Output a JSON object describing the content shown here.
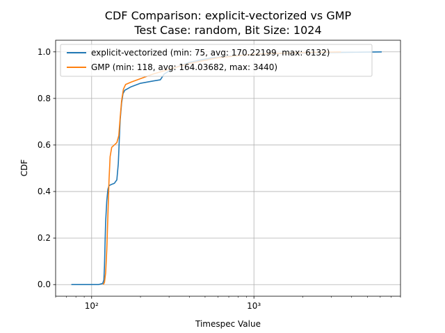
{
  "chart_data": {
    "type": "line",
    "title": "CDF Comparison: explicit-vectorized vs GMP",
    "subtitle": "Test Case: random, Bit Size: 1024",
    "xlabel": "Timespec Value",
    "ylabel": "CDF",
    "x_scale": "log",
    "xlim": [
      60,
      8000
    ],
    "ylim": [
      -0.05,
      1.05
    ],
    "x_major_ticks": [
      100,
      1000
    ],
    "x_tick_labels": [
      "10²",
      "10³"
    ],
    "y_ticks": [
      0.0,
      0.2,
      0.4,
      0.6,
      0.8,
      1.0
    ],
    "y_tick_labels": [
      "0.0",
      "0.2",
      "0.4",
      "0.6",
      "0.8",
      "1.0"
    ],
    "grid": true,
    "legend_position": "top-left",
    "series": [
      {
        "name": "explicit-vectorized (min: 75, avg: 170.22199, max: 6132)",
        "color": "#1f77b4",
        "points": [
          [
            75,
            0.0
          ],
          [
            110,
            0.0
          ],
          [
            117,
            0.005
          ],
          [
            119,
            0.02
          ],
          [
            120,
            0.08
          ],
          [
            121,
            0.18
          ],
          [
            122,
            0.27
          ],
          [
            124,
            0.36
          ],
          [
            126,
            0.41
          ],
          [
            128,
            0.425
          ],
          [
            132,
            0.43
          ],
          [
            138,
            0.435
          ],
          [
            143,
            0.45
          ],
          [
            146,
            0.52
          ],
          [
            148,
            0.62
          ],
          [
            150,
            0.71
          ],
          [
            153,
            0.78
          ],
          [
            156,
            0.82
          ],
          [
            160,
            0.835
          ],
          [
            175,
            0.85
          ],
          [
            200,
            0.865
          ],
          [
            240,
            0.875
          ],
          [
            265,
            0.88
          ],
          [
            280,
            0.905
          ],
          [
            320,
            0.93
          ],
          [
            400,
            0.955
          ],
          [
            550,
            0.975
          ],
          [
            800,
            0.985
          ],
          [
            1500,
            0.993
          ],
          [
            3000,
            0.997
          ],
          [
            5000,
            0.999
          ],
          [
            6132,
            1.0
          ]
        ]
      },
      {
        "name": "GMP (min: 118, avg: 164.03682, max: 3440)",
        "color": "#ff7f0e",
        "points": [
          [
            118,
            0.0
          ],
          [
            120,
            0.01
          ],
          [
            122,
            0.05
          ],
          [
            124,
            0.15
          ],
          [
            126,
            0.3
          ],
          [
            128,
            0.45
          ],
          [
            130,
            0.55
          ],
          [
            133,
            0.59
          ],
          [
            138,
            0.6
          ],
          [
            143,
            0.61
          ],
          [
            147,
            0.64
          ],
          [
            150,
            0.72
          ],
          [
            153,
            0.79
          ],
          [
            157,
            0.84
          ],
          [
            162,
            0.86
          ],
          [
            175,
            0.87
          ],
          [
            200,
            0.885
          ],
          [
            240,
            0.905
          ],
          [
            300,
            0.925
          ],
          [
            400,
            0.95
          ],
          [
            600,
            0.975
          ],
          [
            1000,
            0.99
          ],
          [
            2000,
            0.997
          ],
          [
            3440,
            1.0
          ]
        ]
      }
    ]
  }
}
